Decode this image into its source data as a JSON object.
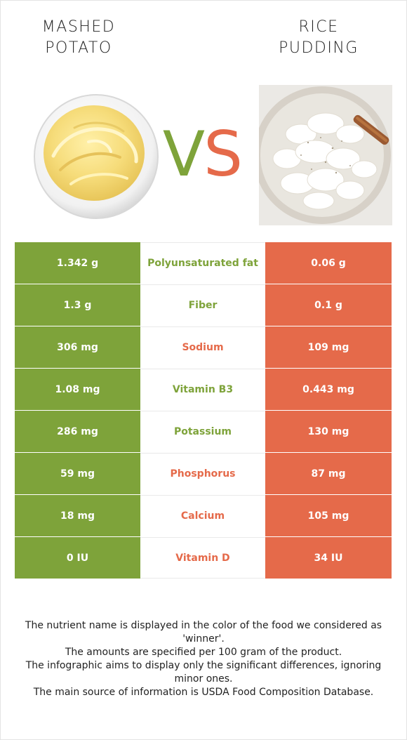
{
  "left_food": {
    "title_line1": "MASHED",
    "title_line2": "POTATO"
  },
  "right_food": {
    "title_line1": "RICE",
    "title_line2": "PUDDING"
  },
  "vs": {
    "v": "V",
    "s": "S"
  },
  "colors": {
    "left": "#7ea33a",
    "right": "#e56a4a"
  },
  "rows": [
    {
      "left": "1.342 g",
      "nutrient": "Polyunsaturated fat",
      "winner": "left",
      "right": "0.06 g"
    },
    {
      "left": "1.3 g",
      "nutrient": "Fiber",
      "winner": "left",
      "right": "0.1 g"
    },
    {
      "left": "306 mg",
      "nutrient": "Sodium",
      "winner": "right",
      "right": "109 mg"
    },
    {
      "left": "1.08 mg",
      "nutrient": "Vitamin B3",
      "winner": "left",
      "right": "0.443 mg"
    },
    {
      "left": "286 mg",
      "nutrient": "Potassium",
      "winner": "left",
      "right": "130 mg"
    },
    {
      "left": "59 mg",
      "nutrient": "Phosphorus",
      "winner": "right",
      "right": "87 mg"
    },
    {
      "left": "18 mg",
      "nutrient": "Calcium",
      "winner": "right",
      "right": "105 mg"
    },
    {
      "left": "0 IU",
      "nutrient": "Vitamin D",
      "winner": "right",
      "right": "34 IU"
    }
  ],
  "notes": [
    "The nutrient name is displayed in the color of the food we considered as 'winner'.",
    "The amounts are specified per 100 gram of the product.",
    "The infographic aims to display only the significant differences, ignoring minor ones.",
    "The main source of information is USDA Food Composition Database."
  ]
}
